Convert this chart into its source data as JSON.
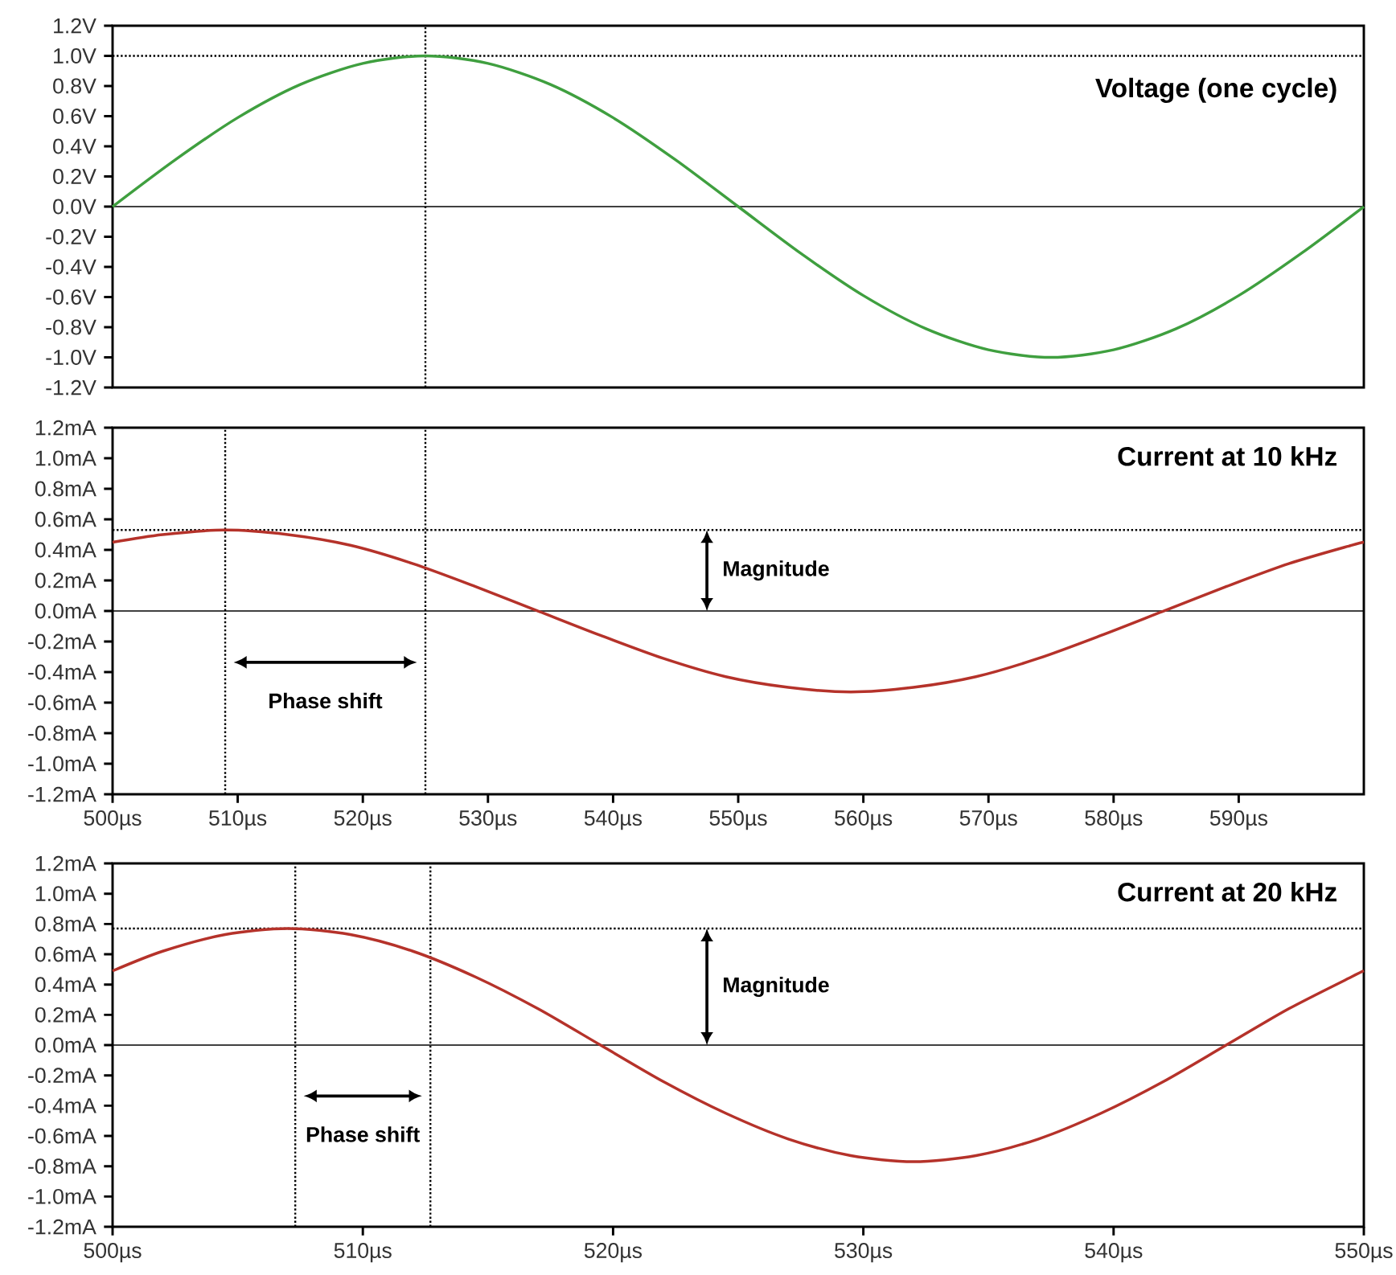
{
  "chart_data": [
    {
      "type": "line",
      "title": "Voltage (one cycle)",
      "xlim": [
        500,
        600
      ],
      "ylim": [
        -1.2,
        1.2
      ],
      "tick_labels": "y",
      "yticks": [
        {
          "value": 1.2,
          "label": "1.2V"
        },
        {
          "value": 1.0,
          "label": "1.0V"
        },
        {
          "value": 0.8,
          "label": "0.8V"
        },
        {
          "value": 0.6,
          "label": "0.6V"
        },
        {
          "value": 0.4,
          "label": "0.4V"
        },
        {
          "value": 0.2,
          "label": "0.2V"
        },
        {
          "value": 0,
          "label": "0.0V"
        },
        {
          "value": -0.2,
          "label": "-0.2V"
        },
        {
          "value": -0.4,
          "label": "-0.4V"
        },
        {
          "value": -0.6,
          "label": "-0.6V"
        },
        {
          "value": -0.8,
          "label": "-0.8V"
        },
        {
          "value": -1.0,
          "label": "-1.0V"
        },
        {
          "value": -1.2,
          "label": "-1.2V"
        }
      ],
      "x": [
        500,
        505,
        510,
        515,
        520,
        525,
        530,
        535,
        540,
        545,
        550,
        555,
        560,
        565,
        570,
        575,
        580,
        585,
        590,
        595,
        600
      ],
      "series": [
        {
          "color": "#3f9f3f",
          "values": [
            0,
            0.31,
            0.59,
            0.81,
            0.95,
            1.0,
            0.95,
            0.81,
            0.59,
            0.31,
            0,
            -0.31,
            -0.59,
            -0.81,
            -0.95,
            -1.0,
            -0.95,
            -0.81,
            -0.59,
            -0.31,
            0
          ]
        }
      ],
      "ref_lines": [
        {
          "axis": "y",
          "value": 0,
          "line_style": "solid"
        },
        {
          "axis": "y",
          "value": 1.0,
          "line_style": "dotted"
        },
        {
          "axis": "x",
          "value": 525,
          "line_style": "dotted"
        }
      ]
    },
    {
      "type": "line",
      "title": "Current at 10 kHz",
      "xlim": [
        500,
        600
      ],
      "ylim": [
        -1.2,
        1.2
      ],
      "xticks": [
        {
          "value": 500,
          "label": "500µs"
        },
        {
          "value": 510,
          "label": "510µs"
        },
        {
          "value": 520,
          "label": "520µs"
        },
        {
          "value": 530,
          "label": "530µs"
        },
        {
          "value": 540,
          "label": "540µs"
        },
        {
          "value": 550,
          "label": "550µs"
        },
        {
          "value": 560,
          "label": "560µs"
        },
        {
          "value": 570,
          "label": "570µs"
        },
        {
          "value": 580,
          "label": "580µs"
        },
        {
          "value": 590,
          "label": "590µs"
        }
      ],
      "yticks": [
        {
          "value": 1.2,
          "label": "1.2mA"
        },
        {
          "value": 1.0,
          "label": "1.0mA"
        },
        {
          "value": 0.8,
          "label": "0.8mA"
        },
        {
          "value": 0.6,
          "label": "0.6mA"
        },
        {
          "value": 0.4,
          "label": "0.4mA"
        },
        {
          "value": 0.2,
          "label": "0.2mA"
        },
        {
          "value": 0,
          "label": "0.0mA"
        },
        {
          "value": -0.2,
          "label": "-0.2mA"
        },
        {
          "value": -0.4,
          "label": "-0.4mA"
        },
        {
          "value": -0.6,
          "label": "-0.6mA"
        },
        {
          "value": -0.8,
          "label": "-0.8mA"
        },
        {
          "value": -1.0,
          "label": "-1.0mA"
        },
        {
          "value": -1.2,
          "label": "-1.2mA"
        }
      ],
      "x": [
        500,
        504,
        509,
        514,
        519,
        524,
        529,
        534,
        539,
        544,
        549,
        554,
        559,
        564,
        569,
        574,
        579,
        584,
        589,
        594,
        599,
        600
      ],
      "series": [
        {
          "color": "#b5322a",
          "values": [
            0.45,
            0.5,
            0.53,
            0.5,
            0.43,
            0.31,
            0.16,
            0,
            -0.16,
            -0.31,
            -0.43,
            -0.5,
            -0.53,
            -0.5,
            -0.43,
            -0.31,
            -0.16,
            0,
            0.16,
            0.31,
            0.43,
            0.45
          ]
        }
      ],
      "ref_lines": [
        {
          "axis": "y",
          "value": 0,
          "line_style": "solid"
        },
        {
          "axis": "y",
          "value": 0.53,
          "line_style": "dotted"
        },
        {
          "axis": "x",
          "value": 509,
          "line_style": "dotted"
        },
        {
          "axis": "x",
          "value": 525,
          "line_style": "dotted"
        }
      ],
      "annotations": [
        "Magnitude",
        "Phase shift"
      ]
    },
    {
      "type": "line",
      "title": "Current at 20 kHz",
      "xlim": [
        500,
        550
      ],
      "ylim": [
        -1.2,
        1.2
      ],
      "xticks": [
        {
          "value": 500,
          "label": "500µs"
        },
        {
          "value": 510,
          "label": "510µs"
        },
        {
          "value": 520,
          "label": "520µs"
        },
        {
          "value": 530,
          "label": "530µs"
        },
        {
          "value": 540,
          "label": "540µs"
        },
        {
          "value": 550,
          "label": "550µs"
        }
      ],
      "yticks": [
        {
          "value": 1.2,
          "label": "1.2mA"
        },
        {
          "value": 1.0,
          "label": "1.0mA"
        },
        {
          "value": 0.8,
          "label": "0.8mA"
        },
        {
          "value": 0.6,
          "label": "0.6mA"
        },
        {
          "value": 0.4,
          "label": "0.4mA"
        },
        {
          "value": 0.2,
          "label": "0.2mA"
        },
        {
          "value": 0,
          "label": "0.0mA"
        },
        {
          "value": -0.2,
          "label": "-0.2mA"
        },
        {
          "value": -0.4,
          "label": "-0.4mA"
        },
        {
          "value": -0.6,
          "label": "-0.6mA"
        },
        {
          "value": -0.8,
          "label": "-0.8mA"
        },
        {
          "value": -1.0,
          "label": "-1.0mA"
        },
        {
          "value": -1.2,
          "label": "-1.2mA"
        }
      ],
      "x": [
        500,
        502,
        504.5,
        507,
        509.5,
        512,
        514.5,
        517,
        519.5,
        522,
        524.5,
        527,
        529.5,
        532,
        534.5,
        537,
        539.5,
        542,
        544.5,
        547,
        549.5,
        550
      ],
      "series": [
        {
          "color": "#b5322a",
          "values": [
            0.49,
            0.62,
            0.73,
            0.77,
            0.73,
            0.62,
            0.45,
            0.24,
            0,
            -0.24,
            -0.45,
            -0.62,
            -0.73,
            -0.77,
            -0.73,
            -0.62,
            -0.45,
            -0.24,
            0,
            0.24,
            0.45,
            0.49
          ]
        }
      ],
      "ref_lines": [
        {
          "axis": "y",
          "value": 0,
          "line_style": "solid"
        },
        {
          "axis": "y",
          "value": 0.77,
          "line_style": "dotted"
        },
        {
          "axis": "x",
          "value": 507.3,
          "line_style": "dotted"
        },
        {
          "axis": "x",
          "value": 512.7,
          "line_style": "dotted"
        }
      ],
      "annotations": [
        "Magnitude",
        "Phase shift"
      ]
    }
  ]
}
